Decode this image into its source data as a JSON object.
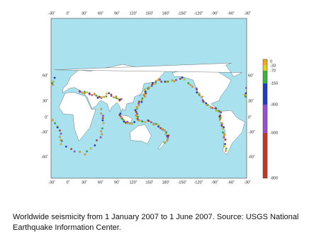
{
  "map": {
    "longitude_labels_top": [
      "-30˚",
      "0˚",
      "30˚",
      "60˚",
      "90˚",
      "120˚",
      "150˚",
      "180˚",
      "-150˚",
      "-120˚",
      "-90˚",
      "-60˚",
      "-30˚"
    ],
    "longitude_labels_bottom": [
      "-30˚",
      "0˚",
      "30˚",
      "60˚",
      "90˚",
      "120˚",
      "150˚",
      "180˚",
      "-150˚",
      "-120˚",
      "-90˚",
      "-60˚",
      "-30˚"
    ],
    "latitude_labels_left": [
      "60˚",
      "30˚",
      "0˚",
      "-30˚",
      "-60˚"
    ],
    "latitude_labels_right": [
      "60˚",
      "30˚",
      "0˚",
      "-30˚",
      "-60˚"
    ],
    "depth_scale_labels": [
      "0",
      "-33",
      "-70",
      "-150",
      "-300",
      "-500",
      "-800"
    ]
  },
  "caption": "Worldwide seismicity from 1 January 2007 to 1 June 2007. Source: USGS National Earthquake Information Center."
}
